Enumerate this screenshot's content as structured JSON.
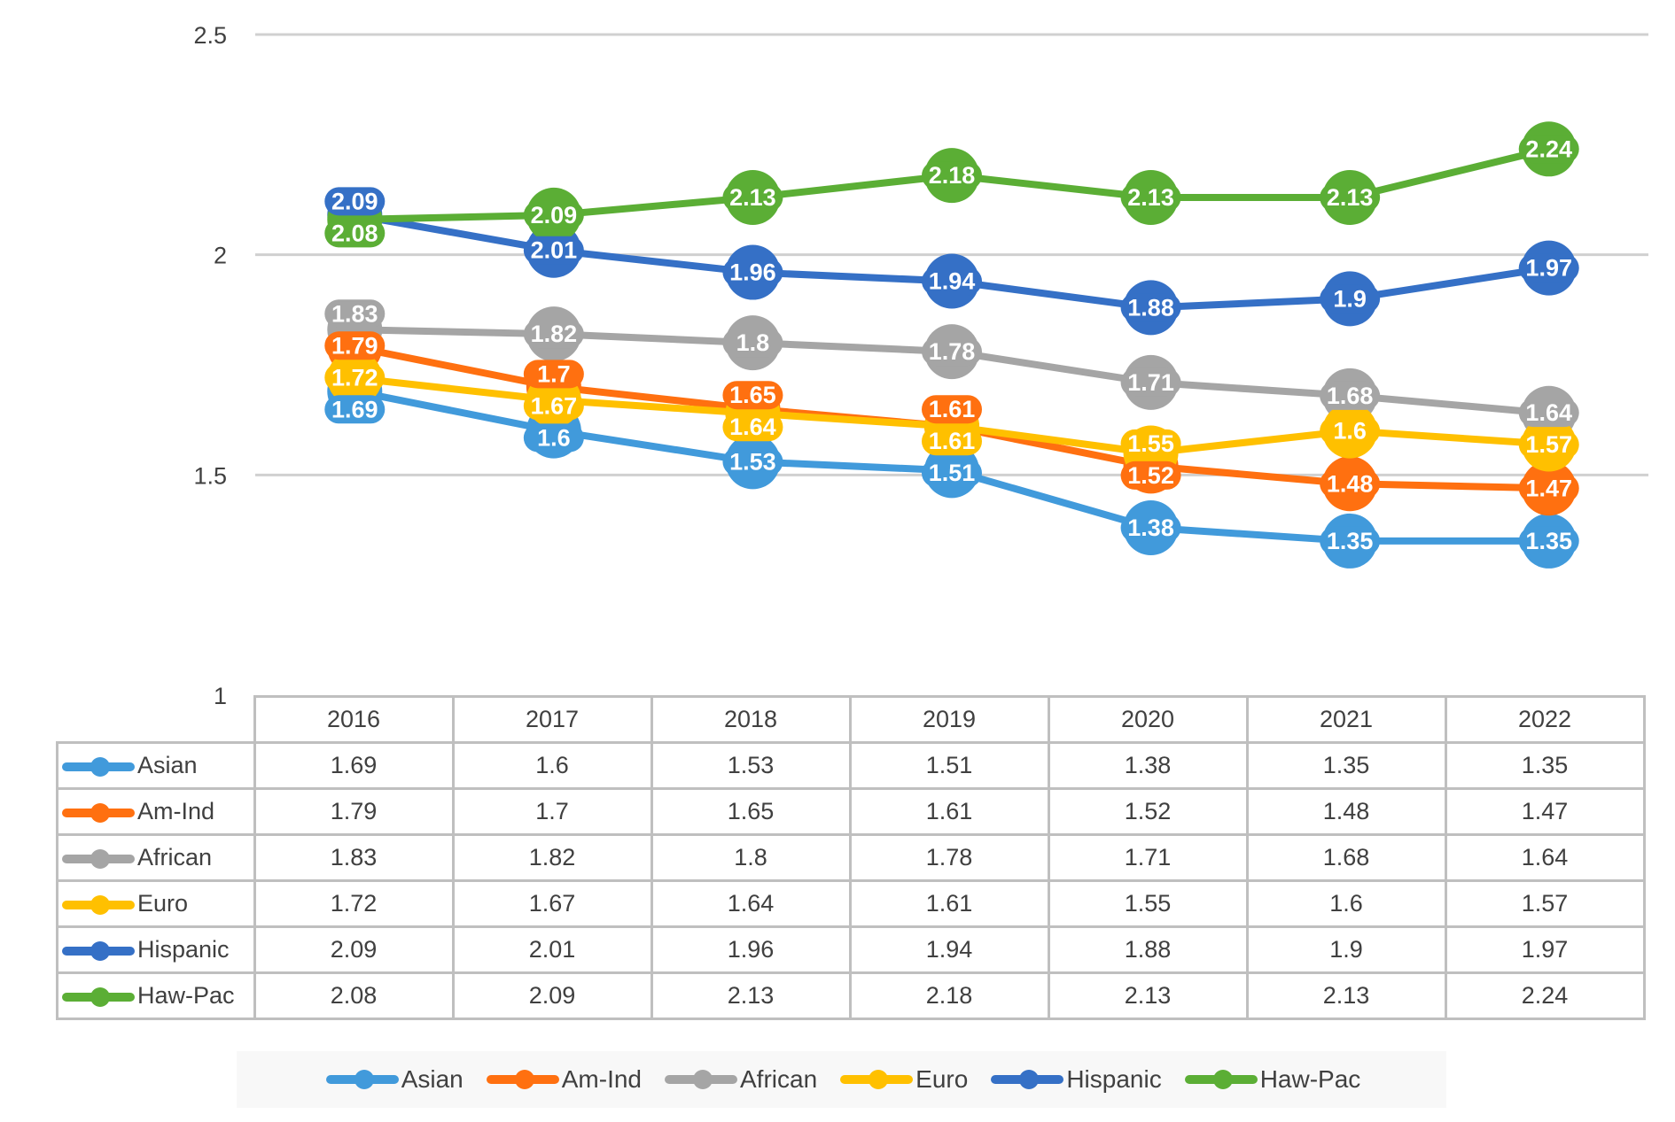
{
  "chart_data": {
    "type": "line",
    "title": "",
    "xlabel": "",
    "ylabel": "",
    "ylim": [
      1,
      2.5
    ],
    "yticks": [
      "1",
      "1.5",
      "2",
      "2.5"
    ],
    "grid": true,
    "legend_position": "bottom",
    "categories": [
      "2016",
      "2017",
      "2018",
      "2019",
      "2020",
      "2021",
      "2022"
    ],
    "series": [
      {
        "name": "Asian",
        "color": "#419ADB",
        "values": [
          1.69,
          1.6,
          1.53,
          1.51,
          1.38,
          1.35,
          1.35
        ]
      },
      {
        "name": "Am-Ind",
        "color": "#FF7010",
        "values": [
          1.79,
          1.7,
          1.65,
          1.61,
          1.52,
          1.48,
          1.47
        ]
      },
      {
        "name": "African",
        "color": "#A5A5A5",
        "values": [
          1.83,
          1.82,
          1.8,
          1.78,
          1.71,
          1.68,
          1.64
        ]
      },
      {
        "name": "Euro",
        "color": "#FFC000",
        "values": [
          1.72,
          1.67,
          1.64,
          1.61,
          1.55,
          1.6,
          1.57
        ]
      },
      {
        "name": "Hispanic",
        "color": "#3570C6",
        "values": [
          2.09,
          2.01,
          1.96,
          1.94,
          1.88,
          1.9,
          1.97
        ]
      },
      {
        "name": "Haw-Pac",
        "color": "#5BAE35",
        "values": [
          2.08,
          2.09,
          2.13,
          2.18,
          2.13,
          2.13,
          2.24
        ]
      }
    ]
  }
}
